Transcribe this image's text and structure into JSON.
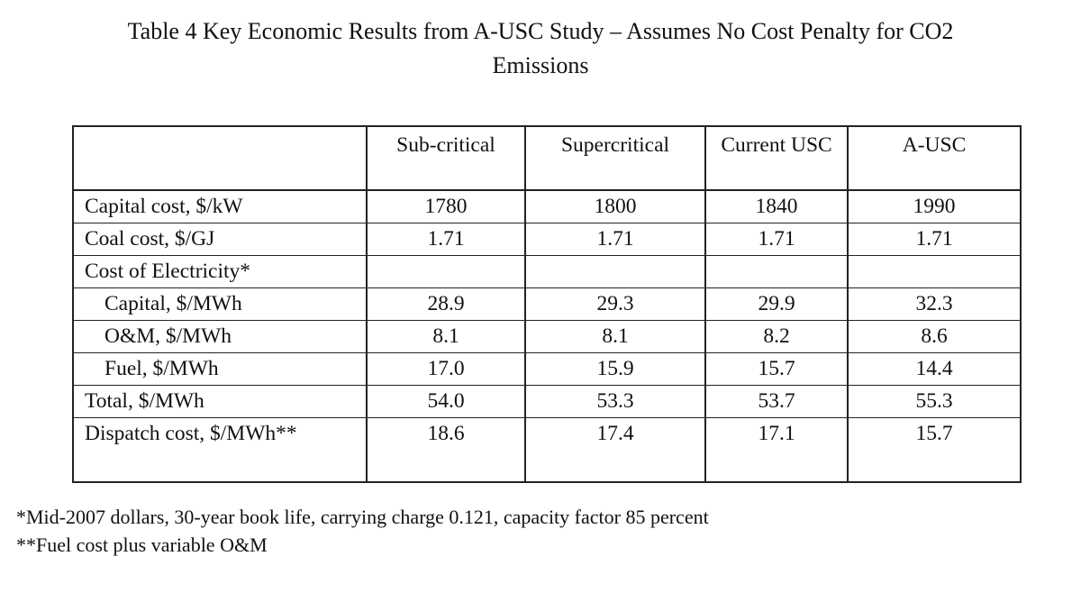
{
  "caption": {
    "line1": "Table 4   Key Economic Results from A-USC Study – Assumes No Cost Penalty for CO2",
    "line2": "Emissions"
  },
  "table": {
    "headers": [
      "",
      "Sub-critical",
      "Supercritical",
      "Current USC",
      "A-USC"
    ],
    "rows": [
      {
        "label": "Capital cost, $/kW",
        "values": [
          "1780",
          "1800",
          "1840",
          "1990"
        ]
      },
      {
        "label": "Coal cost, $/GJ",
        "values": [
          "1.71",
          "1.71",
          "1.71",
          "1.71"
        ]
      },
      {
        "label": "Cost of Electricity*",
        "values": [
          "",
          "",
          "",
          ""
        ]
      },
      {
        "label": "Capital, $/MWh",
        "values": [
          "28.9",
          "29.3",
          "29.9",
          "32.3"
        ]
      },
      {
        "label": "O&M, $/MWh",
        "values": [
          "8.1",
          "8.1",
          "8.2",
          "8.6"
        ]
      },
      {
        "label": "Fuel, $/MWh",
        "values": [
          "17.0",
          "15.9",
          "15.7",
          "14.4"
        ]
      },
      {
        "label": "Total, $/MWh",
        "values": [
          "54.0",
          "53.3",
          "53.7",
          "55.3"
        ]
      },
      {
        "label": "Dispatch cost, $/MWh**",
        "values": [
          "18.6",
          "17.4",
          "17.1",
          "15.7"
        ]
      }
    ]
  },
  "notes": [
    "*Mid-2007 dollars, 30-year book life, carrying charge 0.121, capacity factor 85 percent",
    "**Fuel cost plus variable O&M"
  ]
}
